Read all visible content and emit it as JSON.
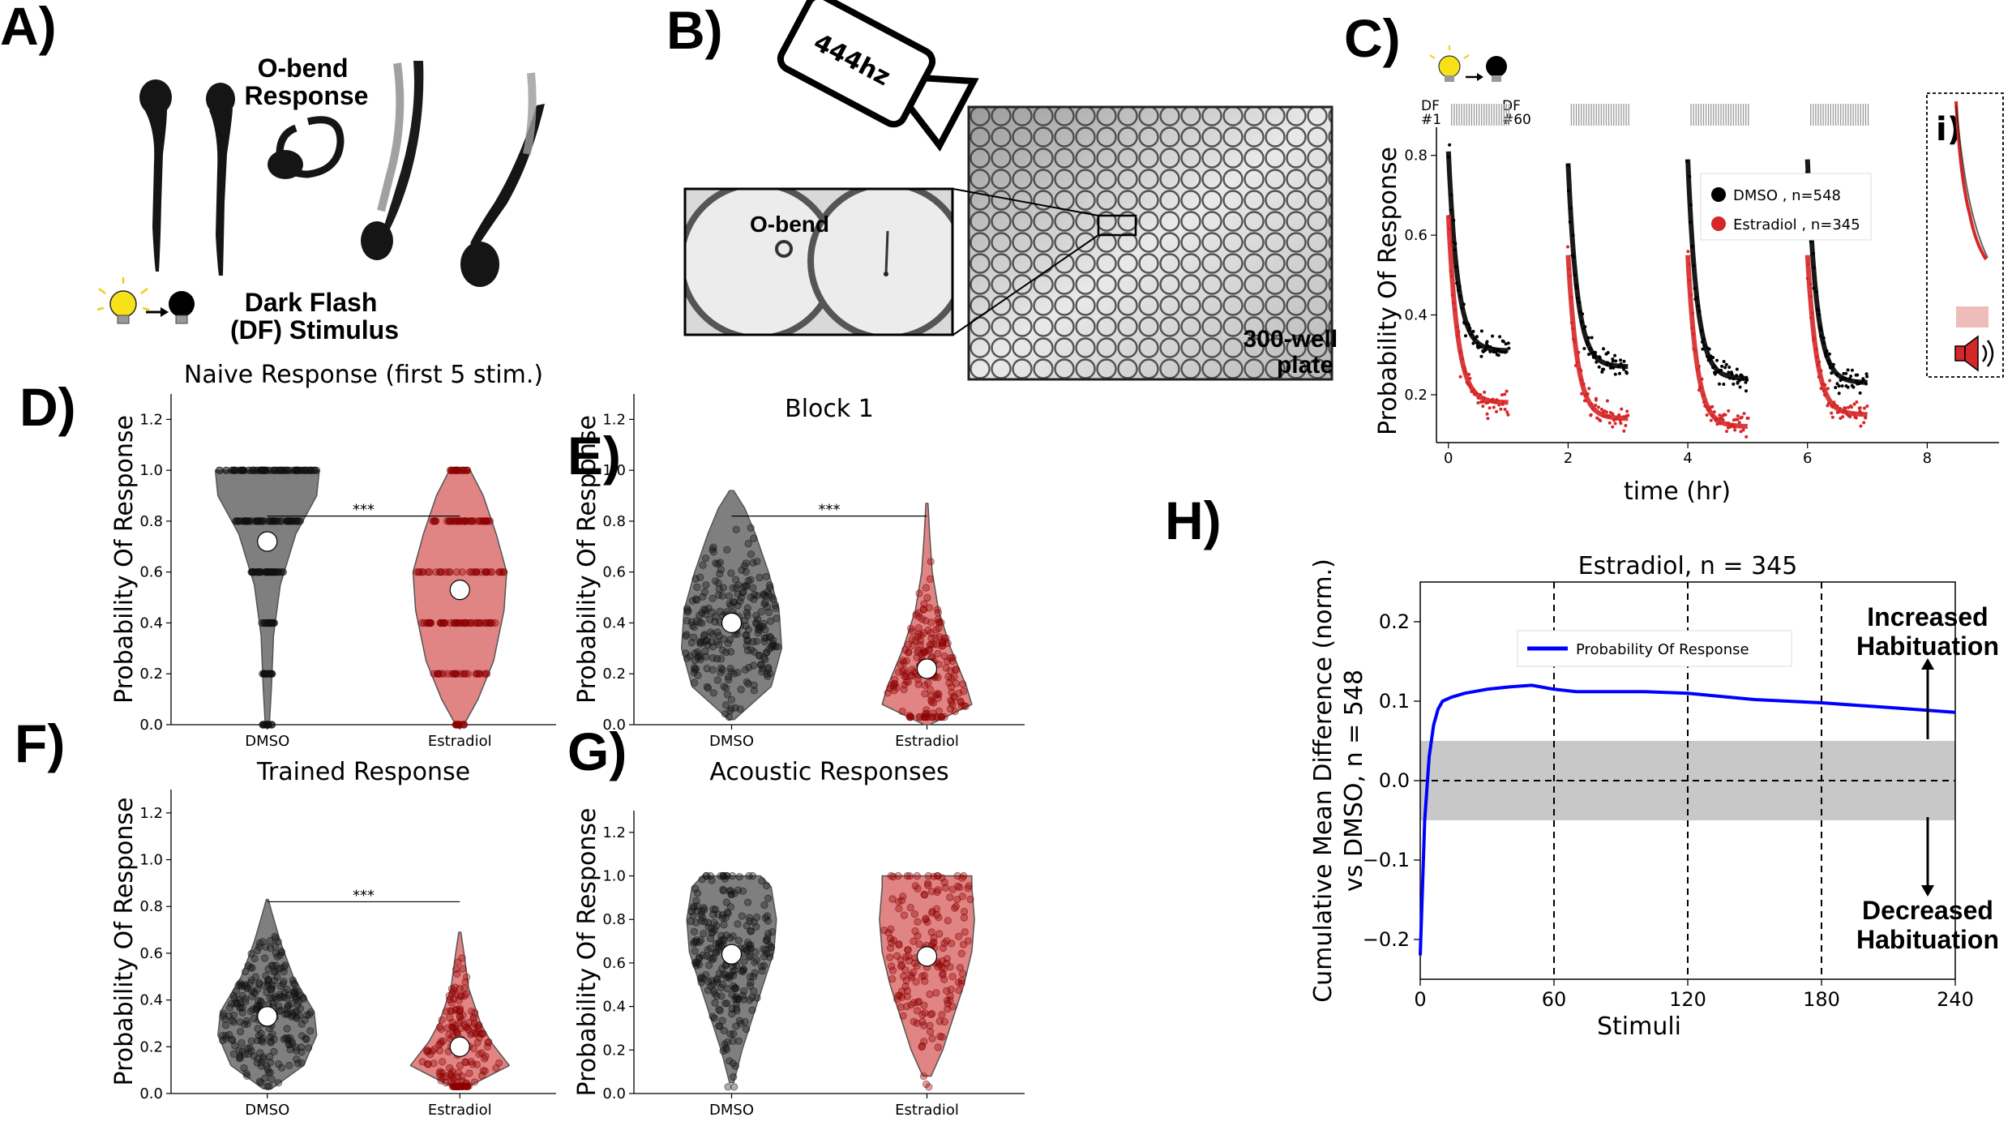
{
  "panels": {
    "A": {
      "letter": "A)",
      "obend_label": "O-bend\nResponse",
      "stimulus_label": "Dark Flash\n(DF) Stimulus",
      "icon_bulb": "lightbulb-on-icon",
      "icon_bulb_off": "lightbulb-off-icon"
    },
    "B": {
      "letter": "B)",
      "camera_label": "444hz",
      "inset_label": "O-bend",
      "plate_label": "300-well\nplate",
      "icon_camera": "camera-icon"
    },
    "C": {
      "letter": "C)",
      "df_first": "DF\n#1",
      "df_last": "DF\n#60",
      "inset_marker": "i)",
      "icon_speaker": "speaker-icon"
    },
    "D": {
      "letter": "D)"
    },
    "E": {
      "letter": "E)"
    },
    "F": {
      "letter": "F)"
    },
    "G": {
      "letter": "G)"
    },
    "H": {
      "letter": "H)",
      "annotation_up": "Increased\nHabituation",
      "annotation_down": "Decreased\nHabituation"
    }
  },
  "colors": {
    "dmso": "#000000",
    "dmso_violin": "#7f7f7f",
    "estradiol": "#d62728",
    "estradiol_violin": "#e08484",
    "line_h": "#0000ff",
    "band": "#c8c8c8"
  },
  "chart_data": [
    {
      "id": "C",
      "type": "scatter",
      "title": "",
      "xlabel": "time (hr)",
      "ylabel": "Probability Of Response",
      "xlim": [
        -0.2,
        9.2
      ],
      "ylim": [
        0.08,
        0.84
      ],
      "xticks": [
        "0",
        "2",
        "4",
        "6",
        "8"
      ],
      "yticks": [
        "0.2",
        "0.4",
        "0.6",
        "0.8"
      ],
      "legend_position": "upper-right",
      "series": [
        {
          "name": "DMSO , n=548",
          "color": "#000000",
          "blocks": [
            {
              "start": 0.0,
              "end": 1.0,
              "first": 0.81,
              "plateau": 0.31
            },
            {
              "start": 2.0,
              "end": 3.0,
              "first": 0.78,
              "plateau": 0.27
            },
            {
              "start": 4.0,
              "end": 5.0,
              "first": 0.79,
              "plateau": 0.24
            },
            {
              "start": 6.0,
              "end": 7.0,
              "first": 0.79,
              "plateau": 0.23
            }
          ]
        },
        {
          "name": "Estradiol , n=345",
          "color": "#d62728",
          "blocks": [
            {
              "start": 0.0,
              "end": 1.0,
              "first": 0.65,
              "plateau": 0.18
            },
            {
              "start": 2.0,
              "end": 3.0,
              "first": 0.55,
              "plateau": 0.14
            },
            {
              "start": 4.0,
              "end": 5.0,
              "first": 0.55,
              "plateau": 0.12
            },
            {
              "start": 6.0,
              "end": 7.0,
              "first": 0.55,
              "plateau": 0.15
            }
          ]
        }
      ]
    },
    {
      "id": "D",
      "type": "violin",
      "title": "Naive Response (first 5 stim.)",
      "ylabel": "Probability Of Response",
      "ylim": [
        0,
        1.3
      ],
      "yticks": [
        "0.0",
        "0.2",
        "0.4",
        "0.6",
        "0.8",
        "1.0",
        "1.2"
      ],
      "categories": [
        "DMSO",
        "Estradiol"
      ],
      "means": [
        0.72,
        0.53
      ],
      "significance": "***",
      "sig_y": 0.82,
      "discrete": true
    },
    {
      "id": "E",
      "type": "violin",
      "title": "Block 1",
      "ylabel": "Probability Of Response",
      "ylim": [
        0,
        1.3
      ],
      "yticks": [
        "0.0",
        "0.2",
        "0.4",
        "0.6",
        "0.8",
        "1.0",
        "1.2"
      ],
      "categories": [
        "DMSO",
        "Estradiol"
      ],
      "means": [
        0.4,
        0.22
      ],
      "significance": "***",
      "sig_y": 0.82,
      "discrete": false
    },
    {
      "id": "F",
      "type": "violin",
      "title": "Trained Response",
      "ylabel": "Probability Of Response",
      "ylim": [
        0,
        1.3
      ],
      "yticks": [
        "0.0",
        "0.2",
        "0.4",
        "0.6",
        "0.8",
        "1.0",
        "1.2"
      ],
      "categories": [
        "DMSO",
        "Estradiol"
      ],
      "means": [
        0.33,
        0.2
      ],
      "significance": "***",
      "sig_y": 0.82,
      "discrete": false
    },
    {
      "id": "G",
      "type": "violin",
      "title": "Acoustic Responses",
      "ylabel": "Probability Of Response",
      "ylim": [
        0,
        1.3
      ],
      "yticks": [
        "0.0",
        "0.2",
        "0.4",
        "0.6",
        "0.8",
        "1.0",
        "1.2"
      ],
      "categories": [
        "DMSO",
        "Estradiol"
      ],
      "means": [
        0.64,
        0.63
      ],
      "significance": "",
      "discrete": false
    },
    {
      "id": "H",
      "type": "line",
      "title": "Estradiol, n = 345",
      "xlabel": "Stimuli",
      "ylabel": "Cumulative Mean Difference (norm.)\nvs DMSO, n = 548",
      "xlim": [
        0,
        240
      ],
      "ylim": [
        -0.25,
        0.25
      ],
      "xticks": [
        "0",
        "60",
        "120",
        "180",
        "240"
      ],
      "yticks": [
        "-0.2",
        "-0.1",
        "0.0",
        "0.1",
        "0.2"
      ],
      "vlines": [
        60,
        120,
        180
      ],
      "band": [
        -0.05,
        0.05
      ],
      "legend_position": "top-center",
      "series": [
        {
          "name": "Probability Of Response",
          "color": "#0000ff",
          "x": [
            0,
            2,
            4,
            6,
            8,
            10,
            14,
            20,
            30,
            40,
            50,
            60,
            70,
            80,
            100,
            120,
            150,
            180,
            210,
            240
          ],
          "y": [
            -0.22,
            -0.05,
            0.03,
            0.07,
            0.09,
            0.1,
            0.105,
            0.11,
            0.115,
            0.118,
            0.12,
            0.115,
            0.112,
            0.112,
            0.112,
            0.11,
            0.102,
            0.098,
            0.092,
            0.086
          ]
        }
      ]
    }
  ]
}
